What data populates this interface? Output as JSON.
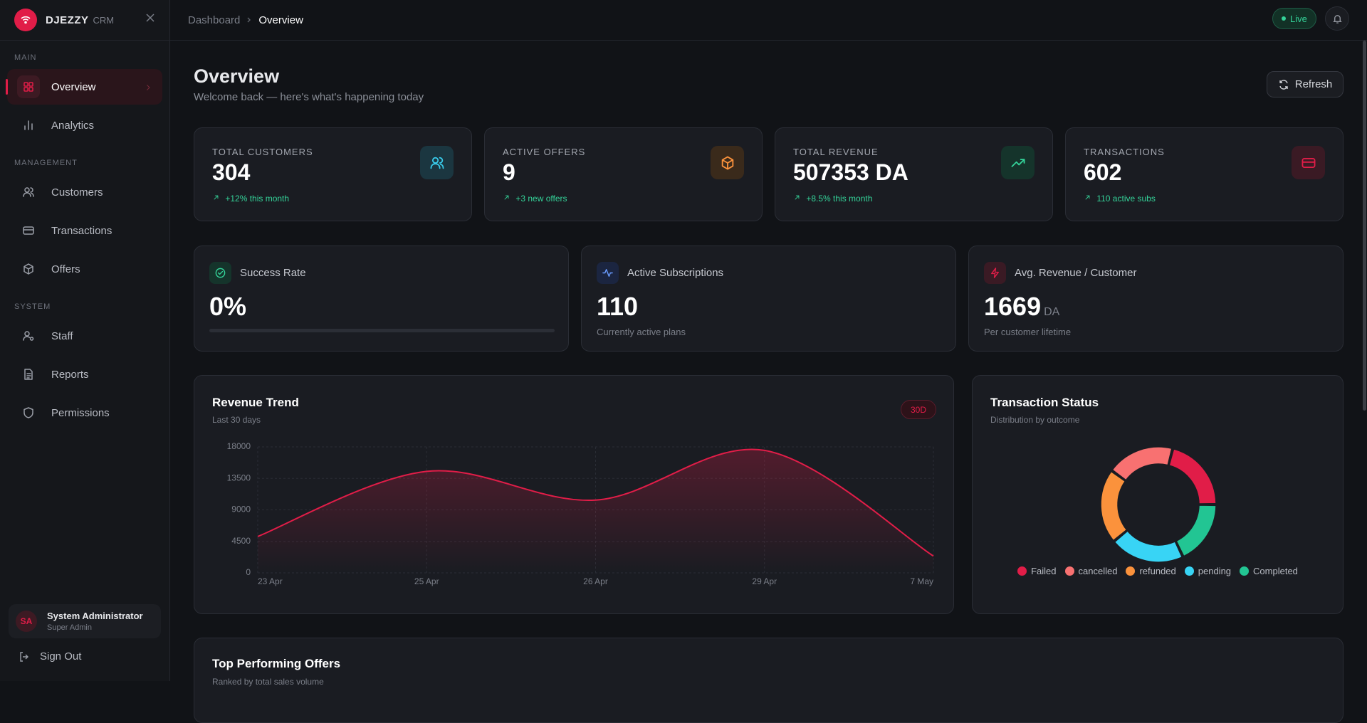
{
  "sidebar": {
    "brand": "DJEZZY",
    "brand_sub": "CRM",
    "sections": [
      {
        "title": "MAIN",
        "items": [
          "Overview",
          "Analytics"
        ]
      },
      {
        "title": "MANAGEMENT",
        "items": [
          "Customers",
          "Transactions",
          "Offers"
        ]
      },
      {
        "title": "SYSTEM",
        "items": [
          "Staff",
          "Reports",
          "Permissions"
        ]
      }
    ],
    "user": {
      "initials": "SA",
      "name": "System Administrator",
      "role": "Super Admin"
    },
    "sign_out": "Sign Out"
  },
  "header": {
    "breadcrumb": [
      "Dashboard",
      "Overview"
    ],
    "status": "Live"
  },
  "page": {
    "title": "Overview",
    "subtitle": "Welcome back — here's what's happening today",
    "refresh": "Refresh"
  },
  "stats": [
    {
      "label": "TOTAL CUSTOMERS",
      "value": "304",
      "change": "+12% this month"
    },
    {
      "label": "ACTIVE OFFERS",
      "value": "9",
      "change": "+3 new offers"
    },
    {
      "label": "TOTAL REVENUE",
      "value": "507353 DA",
      "change": "+8.5% this month"
    },
    {
      "label": "TRANSACTIONS",
      "value": "602",
      "change": "110 active subs"
    }
  ],
  "metrics": [
    {
      "label": "Success Rate",
      "value": "0%",
      "progress": 0
    },
    {
      "label": "Active Subscriptions",
      "value": "110",
      "note": "Currently active plans"
    },
    {
      "label": "Avg. Revenue / Customer",
      "value": "1669",
      "unit": "DA",
      "note": "Per customer lifetime"
    }
  ],
  "chart_data": [
    {
      "type": "line",
      "title": "Revenue Trend",
      "subtitle": "Last 30 days",
      "badge": "30D",
      "categories": [
        "23 Apr",
        "25 Apr",
        "26 Apr",
        "29 Apr",
        "7 May"
      ],
      "values": [
        5200,
        14500,
        10400,
        17500,
        2400
      ],
      "color": "#e11d48",
      "ylim": [
        0,
        18000
      ],
      "yticks": [
        0,
        4500,
        9000,
        13500,
        18000
      ],
      "grid": true
    },
    {
      "type": "donut",
      "title": "Transaction Status",
      "subtitle": "Distribution by outcome",
      "categories": [
        "Failed",
        "cancelled",
        "refunded",
        "pending",
        "Completed"
      ],
      "values": [
        21,
        19,
        21,
        21,
        18
      ],
      "colors": [
        "#e11d48",
        "#f87171",
        "#fb923c",
        "#38d4f5",
        "#22c593"
      ]
    }
  ],
  "offers": {
    "title": "Top Performing Offers",
    "subtitle": "Ranked by total sales volume"
  }
}
